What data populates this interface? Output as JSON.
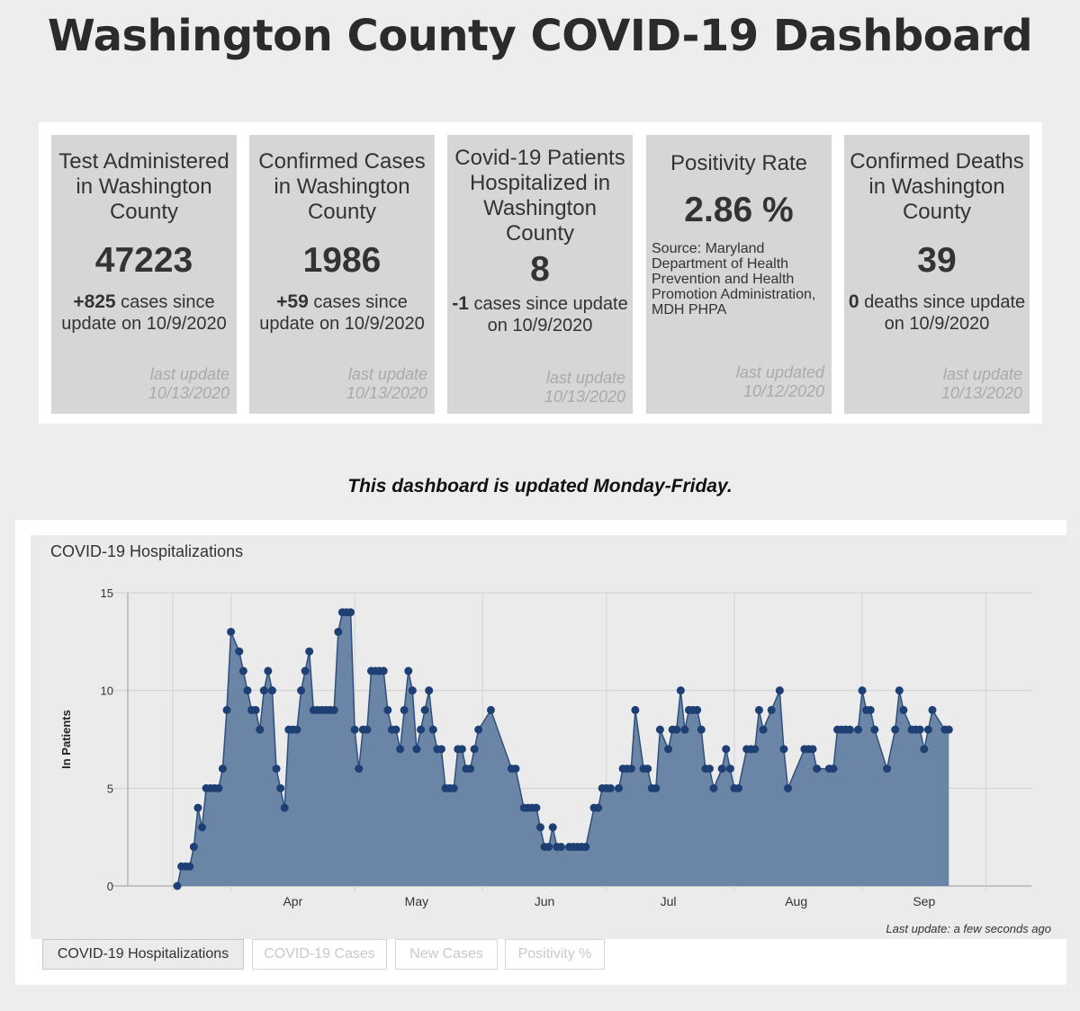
{
  "title": "Washington County COVID-19 Dashboard",
  "cards": [
    {
      "heading": "Test Administered in Washington County",
      "value": "47223",
      "change_value": "+825",
      "change_text": " cases since update on 10/9/2020",
      "updated_label": "last update",
      "updated_date": "10/13/2020"
    },
    {
      "heading": "Confirmed Cases in Washington County",
      "value": "1986",
      "change_value": "+59",
      "change_text": " cases since update on 10/9/2020",
      "updated_label": "last update",
      "updated_date": "10/13/2020"
    },
    {
      "heading": "Covid-19 Patients Hospitalized in Washington County",
      "value": "8",
      "change_value": "-1",
      "change_text": " cases since update on 10/9/2020",
      "updated_label": "last update",
      "updated_date": "10/13/2020"
    },
    {
      "heading": "Positivity Rate",
      "value": "2.86 %",
      "source": "Source: Maryland Department of Health Prevention and Health Promotion Administration, MDH PHPA",
      "updated_label": "last updated",
      "updated_date": "10/12/2020"
    },
    {
      "heading": "Confirmed Deaths in Washington County",
      "value": "39",
      "change_value": "0",
      "change_text": " deaths since update on 10/9/2020",
      "updated_label": "last update",
      "updated_date": "10/13/2020"
    }
  ],
  "notice": "This dashboard is updated Monday-Friday.",
  "chart_title": "COVID-19 Hospitalizations",
  "chart_updated": "Last update: a few seconds ago",
  "tabs": [
    "COVID-19 Hospitalizations",
    "COVID-19 Cases",
    "New Cases",
    "Positivity %"
  ],
  "colors": {
    "area": "#6b85a6",
    "line": "#2f4f7c",
    "point": "#1d3f73",
    "background": "#ebebeb"
  },
  "chart_data": {
    "type": "area",
    "title": "COVID-19 Hospitalizations",
    "ylabel": "In Patients",
    "xlabel": "",
    "ylim": [
      0,
      15
    ],
    "yticks": [
      0,
      5,
      10,
      15
    ],
    "xticks": [
      "Apr",
      "May",
      "Jun",
      "Jul",
      "Aug",
      "Sep"
    ],
    "xrange": [
      "2020-03-07",
      "2020-10-12"
    ],
    "grid": true,
    "points": [
      [
        "2020-03-19",
        0
      ],
      [
        "2020-03-20",
        1
      ],
      [
        "2020-03-21",
        1
      ],
      [
        "2020-03-22",
        1
      ],
      [
        "2020-03-23",
        2
      ],
      [
        "2020-03-24",
        4
      ],
      [
        "2020-03-25",
        3
      ],
      [
        "2020-03-26",
        5
      ],
      [
        "2020-03-27",
        5
      ],
      [
        "2020-03-28",
        5
      ],
      [
        "2020-03-29",
        5
      ],
      [
        "2020-03-30",
        6
      ],
      [
        "2020-03-31",
        9
      ],
      [
        "2020-04-01",
        13
      ],
      [
        "2020-04-03",
        12
      ],
      [
        "2020-04-04",
        11
      ],
      [
        "2020-04-05",
        10
      ],
      [
        "2020-04-06",
        9
      ],
      [
        "2020-04-07",
        9
      ],
      [
        "2020-04-08",
        8
      ],
      [
        "2020-04-09",
        10
      ],
      [
        "2020-04-10",
        11
      ],
      [
        "2020-04-11",
        10
      ],
      [
        "2020-04-12",
        6
      ],
      [
        "2020-04-13",
        5
      ],
      [
        "2020-04-14",
        4
      ],
      [
        "2020-04-15",
        8
      ],
      [
        "2020-04-16",
        8
      ],
      [
        "2020-04-17",
        8
      ],
      [
        "2020-04-18",
        10
      ],
      [
        "2020-04-19",
        11
      ],
      [
        "2020-04-20",
        12
      ],
      [
        "2020-04-21",
        9
      ],
      [
        "2020-04-22",
        9
      ],
      [
        "2020-04-23",
        9
      ],
      [
        "2020-04-24",
        9
      ],
      [
        "2020-04-25",
        9
      ],
      [
        "2020-04-26",
        9
      ],
      [
        "2020-04-27",
        13
      ],
      [
        "2020-04-28",
        14
      ],
      [
        "2020-04-29",
        14
      ],
      [
        "2020-04-30",
        14
      ],
      [
        "2020-05-01",
        8
      ],
      [
        "2020-05-02",
        6
      ],
      [
        "2020-05-03",
        8
      ],
      [
        "2020-05-04",
        8
      ],
      [
        "2020-05-05",
        11
      ],
      [
        "2020-05-06",
        11
      ],
      [
        "2020-05-07",
        11
      ],
      [
        "2020-05-08",
        11
      ],
      [
        "2020-05-09",
        9
      ],
      [
        "2020-05-10",
        8
      ],
      [
        "2020-05-11",
        8
      ],
      [
        "2020-05-12",
        7
      ],
      [
        "2020-05-13",
        9
      ],
      [
        "2020-05-14",
        11
      ],
      [
        "2020-05-15",
        10
      ],
      [
        "2020-05-16",
        7
      ],
      [
        "2020-05-17",
        8
      ],
      [
        "2020-05-18",
        9
      ],
      [
        "2020-05-19",
        10
      ],
      [
        "2020-05-20",
        8
      ],
      [
        "2020-05-21",
        7
      ],
      [
        "2020-05-22",
        7
      ],
      [
        "2020-05-23",
        5
      ],
      [
        "2020-05-24",
        5
      ],
      [
        "2020-05-25",
        5
      ],
      [
        "2020-05-26",
        7
      ],
      [
        "2020-05-27",
        7
      ],
      [
        "2020-05-28",
        6
      ],
      [
        "2020-05-29",
        6
      ],
      [
        "2020-05-30",
        7
      ],
      [
        "2020-05-31",
        8
      ],
      [
        "2020-06-03",
        9
      ],
      [
        "2020-06-08",
        6
      ],
      [
        "2020-06-09",
        6
      ],
      [
        "2020-06-11",
        4
      ],
      [
        "2020-06-12",
        4
      ],
      [
        "2020-06-13",
        4
      ],
      [
        "2020-06-14",
        4
      ],
      [
        "2020-06-15",
        3
      ],
      [
        "2020-06-16",
        2
      ],
      [
        "2020-06-17",
        2
      ],
      [
        "2020-06-18",
        3
      ],
      [
        "2020-06-19",
        2
      ],
      [
        "2020-06-20",
        2
      ],
      [
        "2020-06-22",
        2
      ],
      [
        "2020-06-23",
        2
      ],
      [
        "2020-06-24",
        2
      ],
      [
        "2020-06-25",
        2
      ],
      [
        "2020-06-26",
        2
      ],
      [
        "2020-06-28",
        4
      ],
      [
        "2020-06-29",
        4
      ],
      [
        "2020-06-30",
        5
      ],
      [
        "2020-07-01",
        5
      ],
      [
        "2020-07-02",
        5
      ],
      [
        "2020-07-04",
        5
      ],
      [
        "2020-07-05",
        6
      ],
      [
        "2020-07-06",
        6
      ],
      [
        "2020-07-07",
        6
      ],
      [
        "2020-07-08",
        9
      ],
      [
        "2020-07-10",
        6
      ],
      [
        "2020-07-11",
        6
      ],
      [
        "2020-07-12",
        5
      ],
      [
        "2020-07-13",
        5
      ],
      [
        "2020-07-14",
        8
      ],
      [
        "2020-07-16",
        7
      ],
      [
        "2020-07-17",
        8
      ],
      [
        "2020-07-18",
        8
      ],
      [
        "2020-07-19",
        10
      ],
      [
        "2020-07-20",
        8
      ],
      [
        "2020-07-21",
        9
      ],
      [
        "2020-07-22",
        9
      ],
      [
        "2020-07-23",
        9
      ],
      [
        "2020-07-24",
        8
      ],
      [
        "2020-07-25",
        6
      ],
      [
        "2020-07-26",
        6
      ],
      [
        "2020-07-27",
        5
      ],
      [
        "2020-07-29",
        6
      ],
      [
        "2020-07-30",
        7
      ],
      [
        "2020-07-31",
        6
      ],
      [
        "2020-08-01",
        5
      ],
      [
        "2020-08-02",
        5
      ],
      [
        "2020-08-04",
        7
      ],
      [
        "2020-08-05",
        7
      ],
      [
        "2020-08-06",
        7
      ],
      [
        "2020-08-07",
        9
      ],
      [
        "2020-08-08",
        8
      ],
      [
        "2020-08-10",
        9
      ],
      [
        "2020-08-12",
        10
      ],
      [
        "2020-08-13",
        7
      ],
      [
        "2020-08-14",
        5
      ],
      [
        "2020-08-18",
        7
      ],
      [
        "2020-08-19",
        7
      ],
      [
        "2020-08-20",
        7
      ],
      [
        "2020-08-21",
        6
      ],
      [
        "2020-08-24",
        6
      ],
      [
        "2020-08-25",
        6
      ],
      [
        "2020-08-26",
        8
      ],
      [
        "2020-08-27",
        8
      ],
      [
        "2020-08-28",
        8
      ],
      [
        "2020-08-29",
        8
      ],
      [
        "2020-08-31",
        8
      ],
      [
        "2020-09-01",
        10
      ],
      [
        "2020-09-02",
        9
      ],
      [
        "2020-09-03",
        9
      ],
      [
        "2020-09-04",
        8
      ],
      [
        "2020-09-07",
        6
      ],
      [
        "2020-09-09",
        8
      ],
      [
        "2020-09-10",
        10
      ],
      [
        "2020-09-11",
        9
      ],
      [
        "2020-09-13",
        8
      ],
      [
        "2020-09-14",
        8
      ],
      [
        "2020-09-15",
        8
      ],
      [
        "2020-09-16",
        7
      ],
      [
        "2020-09-17",
        8
      ],
      [
        "2020-09-18",
        9
      ],
      [
        "2020-09-21",
        8
      ],
      [
        "2020-09-22",
        8
      ]
    ]
  }
}
